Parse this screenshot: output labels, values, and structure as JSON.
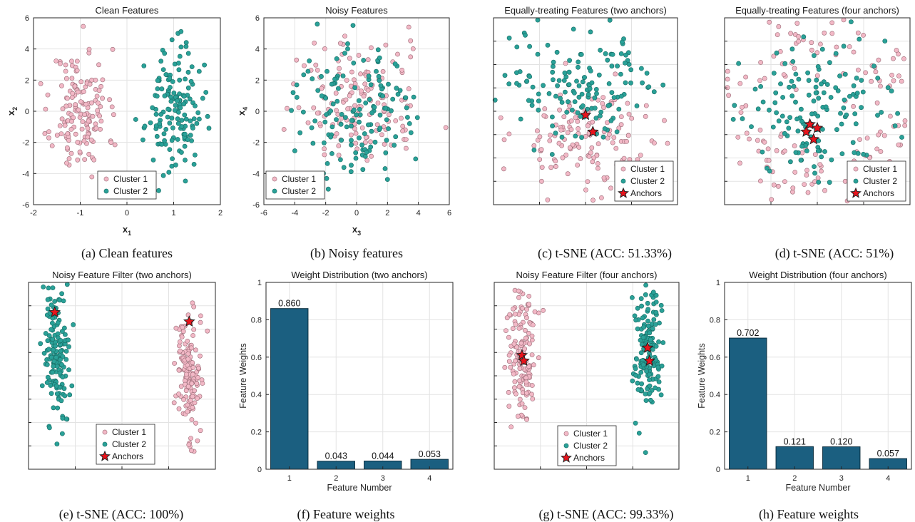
{
  "colors": {
    "cluster1": "#f2b8c6",
    "cluster1_edge": "#9a6b76",
    "cluster2": "#2aa198",
    "cluster2_edge": "#176b63",
    "anchor": "#e8141c",
    "bar": "#1b5f80"
  },
  "captions": [
    "(a) Clean features",
    "(b) Noisy features",
    "(c) t-SNE (ACC: 51.33%)",
    "(d) t-SNE (ACC: 51%)",
    "(e) t-SNE (ACC: 100%)",
    "(f) Feature weights",
    "(g) t-SNE (ACC: 99.33%)",
    "(h) Feature weights"
  ],
  "legend": {
    "cluster1": "Cluster 1",
    "cluster2": "Cluster 2",
    "anchors": "Anchors"
  },
  "chart_data": [
    {
      "id": "a",
      "type": "scatter",
      "title": "Clean Features",
      "xlabel": "x",
      "xsub": "1",
      "ylabel": "x",
      "ysub": "2",
      "xlim": [
        -2,
        2
      ],
      "ylim": [
        -6,
        6
      ],
      "xticks": [
        -2,
        -1,
        0,
        1,
        2
      ],
      "yticks": [
        -6,
        -4,
        -2,
        0,
        2,
        4,
        6
      ],
      "series": [
        {
          "name": "Cluster 1",
          "gen": {
            "dist": "gauss",
            "cx": -1.0,
            "cy": 0.0,
            "sx": 0.3,
            "sy": 2.0,
            "n": 150,
            "seed": 11
          }
        },
        {
          "name": "Cluster 2",
          "gen": {
            "dist": "gauss",
            "cx": 1.0,
            "cy": 0.0,
            "sx": 0.3,
            "sy": 2.0,
            "n": 150,
            "seed": 23
          }
        }
      ]
    },
    {
      "id": "b",
      "type": "scatter",
      "title": "Noisy Features",
      "xlabel": "x",
      "xsub": "3",
      "ylabel": "x",
      "ysub": "4",
      "xlim": [
        -6,
        6
      ],
      "ylim": [
        -6,
        6
      ],
      "xticks": [
        -6,
        -4,
        -2,
        0,
        2,
        4,
        6
      ],
      "yticks": [
        -6,
        -4,
        -2,
        0,
        2,
        4,
        6
      ],
      "series": [
        {
          "name": "Cluster 1",
          "gen": {
            "dist": "gauss",
            "cx": 0.0,
            "cy": 0.5,
            "sx": 2.1,
            "sy": 2.0,
            "n": 150,
            "seed": 31
          }
        },
        {
          "name": "Cluster 2",
          "gen": {
            "dist": "gauss",
            "cx": 0.0,
            "cy": 0.0,
            "sx": 2.2,
            "sy": 2.2,
            "n": 150,
            "seed": 47
          }
        }
      ]
    },
    {
      "id": "c",
      "type": "scatter",
      "title": "Equally-treating Features (two anchors)",
      "series": [
        {
          "name": "Cluster 1",
          "gen": {
            "dist": "gauss",
            "cx": 0.52,
            "cy": 0.33,
            "sx": 0.21,
            "sy": 0.17,
            "n": 150,
            "seed": 53
          }
        },
        {
          "name": "Cluster 2",
          "gen": {
            "dist": "gauss",
            "cx": 0.45,
            "cy": 0.67,
            "sx": 0.21,
            "sy": 0.17,
            "n": 150,
            "seed": 61
          }
        }
      ],
      "anchors": [
        [
          0.5,
          0.48
        ],
        [
          0.54,
          0.39
        ]
      ]
    },
    {
      "id": "d",
      "type": "scatter",
      "title": "Equally-treating Features (four anchors)",
      "series": [
        {
          "name": "Cluster 1",
          "gen": {
            "dist": "ring",
            "cx": 0.5,
            "cy": 0.5,
            "r": 0.42,
            "w": 0.1,
            "n": 150,
            "seed": 71
          }
        },
        {
          "name": "Cluster 2",
          "gen": {
            "dist": "gauss",
            "cx": 0.5,
            "cy": 0.5,
            "sx": 0.22,
            "sy": 0.2,
            "n": 150,
            "seed": 83
          }
        }
      ],
      "anchors": [
        [
          0.46,
          0.43
        ],
        [
          0.5,
          0.41
        ],
        [
          0.44,
          0.39
        ],
        [
          0.48,
          0.35
        ]
      ]
    },
    {
      "id": "e",
      "type": "scatter",
      "title": "Noisy Feature Filter (two anchors)",
      "series": [
        {
          "name": "Cluster 1",
          "gen": {
            "dist": "gauss",
            "cx": 0.85,
            "cy": 0.5,
            "sx": 0.035,
            "sy": 0.18,
            "n": 150,
            "seed": 97
          }
        },
        {
          "name": "Cluster 2",
          "gen": {
            "dist": "gauss",
            "cx": 0.15,
            "cy": 0.62,
            "sx": 0.035,
            "sy": 0.18,
            "n": 150,
            "seed": 101
          }
        }
      ],
      "anchors": [
        [
          0.14,
          0.84
        ],
        [
          0.86,
          0.79
        ]
      ]
    },
    {
      "id": "f",
      "type": "bar",
      "title": "Weight Distribution (two anchors)",
      "xlabel": "Feature Number",
      "ylabel": "Feature Weights",
      "categories": [
        "1",
        "2",
        "3",
        "4"
      ],
      "values": [
        0.86,
        0.043,
        0.044,
        0.053
      ],
      "labels": [
        "0.860",
        "0.043",
        "0.044",
        "0.053"
      ],
      "ylim": [
        0,
        1
      ],
      "yticks": [
        "0",
        "0.2",
        "0.4",
        "0.6",
        "0.8",
        "1"
      ]
    },
    {
      "id": "g",
      "type": "scatter",
      "title": "Noisy Feature Filter (four anchors)",
      "series": [
        {
          "name": "Cluster 1",
          "gen": {
            "dist": "gauss",
            "cx": 0.15,
            "cy": 0.62,
            "sx": 0.04,
            "sy": 0.19,
            "n": 150,
            "seed": 113
          }
        },
        {
          "name": "Cluster 2",
          "gen": {
            "dist": "gauss",
            "cx": 0.83,
            "cy": 0.6,
            "sx": 0.04,
            "sy": 0.19,
            "n": 150,
            "seed": 127
          }
        }
      ],
      "anchors": [
        [
          0.15,
          0.61
        ],
        [
          0.16,
          0.58
        ],
        [
          0.83,
          0.65
        ],
        [
          0.84,
          0.58
        ]
      ]
    },
    {
      "id": "h",
      "type": "bar",
      "title": "Weight Distribution (four anchors)",
      "xlabel": "Feature Number",
      "ylabel": "Feature Weights",
      "categories": [
        "1",
        "2",
        "3",
        "4"
      ],
      "values": [
        0.702,
        0.121,
        0.12,
        0.057
      ],
      "labels": [
        "0.702",
        "0.121",
        "0.120",
        "0.057"
      ],
      "ylim": [
        0,
        1
      ],
      "yticks": [
        "0",
        "0.2",
        "0.4",
        "0.6",
        "0.8",
        "1"
      ]
    }
  ]
}
